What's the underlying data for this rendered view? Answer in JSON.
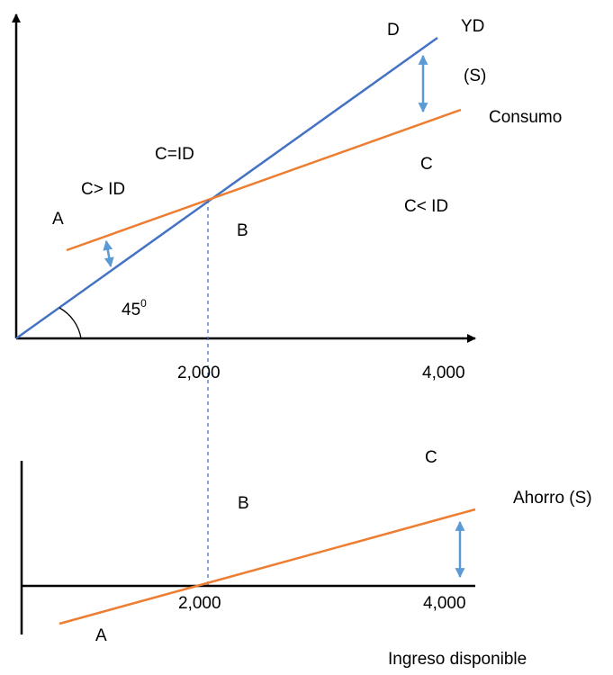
{
  "colors": {
    "axis": "#000000",
    "yd_line": "#4472C4",
    "consumption_line": "#ED7D31",
    "savings_line": "#ED7D31",
    "gap_arrow": "#5B9BD5",
    "guide": "#4472C4"
  },
  "top": {
    "label_yd": "YD",
    "label_d": "D",
    "label_s": "(S)",
    "label_consumo": "Consumo",
    "label_c": "C",
    "label_c_eq_id": "C=ID",
    "label_c_gt_id": "C> ID",
    "label_a": "A",
    "label_b": "B",
    "label_c_lt_id": "C< ID",
    "angle_value": "45",
    "angle_sup": "0",
    "tick_2000": "2,000",
    "tick_4000": "4,000"
  },
  "bottom": {
    "label_c": "C",
    "label_ahorro": "Ahorro (S)",
    "label_b": "B",
    "tick_2000": "2,000",
    "tick_4000": "4,000",
    "label_a": "A",
    "axis_title": "Ingreso disponible"
  }
}
